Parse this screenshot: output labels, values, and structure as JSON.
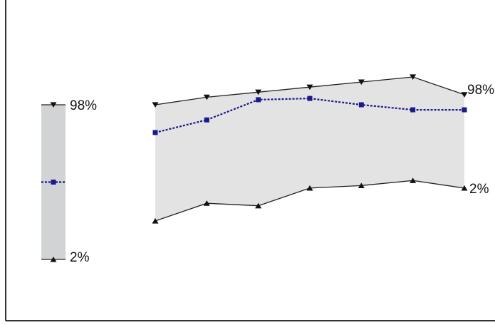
{
  "chart_data": {
    "type": "area",
    "title": "",
    "xlabel": "",
    "ylabel": "",
    "grid": false,
    "legend": "none",
    "ylim": [
      0,
      100
    ],
    "x": [
      1,
      2,
      3,
      4,
      5,
      6,
      7
    ],
    "series": [
      {
        "key": "upper",
        "values": [
          88,
          91,
          93,
          95,
          97,
          99,
          92
        ]
      },
      {
        "key": "median",
        "values": [
          77,
          82,
          90,
          90.5,
          88,
          86,
          86
        ]
      },
      {
        "key": "lower",
        "values": [
          42,
          49,
          48,
          55,
          56,
          58,
          55
        ]
      }
    ],
    "band_labels": {
      "upper": "98%",
      "lower": "2%"
    },
    "reference_bar": {
      "upper": 98,
      "median": 50,
      "lower": 2
    },
    "colors": {
      "band_fill": "#e3e3e3",
      "reference_fill": "#d2d3d4",
      "bound_line": "#222222",
      "median_line": "#1a1a8c",
      "axis": "#333333"
    }
  }
}
